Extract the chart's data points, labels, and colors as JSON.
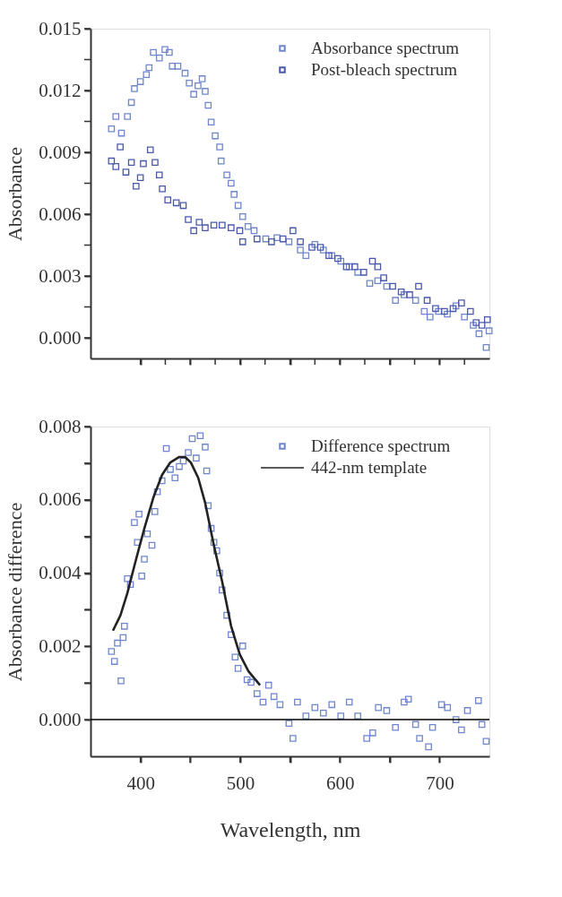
{
  "chart_data": [
    {
      "type": "scatter",
      "ylabel": "Absorbance",
      "marker": "square",
      "legend": "top right",
      "tick_labels": "y",
      "xlim": [
        350,
        750
      ],
      "xticks": [
        400,
        {
          "value": 425,
          "label": null
        },
        450,
        {
          "value": 475,
          "label": null
        },
        500,
        {
          "value": 525,
          "label": null
        },
        550,
        {
          "value": 575,
          "label": null
        },
        600,
        {
          "value": 625,
          "label": null
        },
        650,
        {
          "value": 675,
          "label": null
        },
        700,
        {
          "value": 725,
          "label": null
        }
      ],
      "ylim": [
        -0.001,
        0.015
      ],
      "yticks": [
        {
          "value": 0,
          "label": "0.000"
        },
        {
          "value": 0.0015,
          "label": null
        },
        {
          "value": 0.003,
          "label": "0.003"
        },
        {
          "value": 0.0045,
          "label": null
        },
        {
          "value": 0.006,
          "label": "0.006"
        },
        {
          "value": 0.0075,
          "label": null
        },
        {
          "value": 0.009,
          "label": "0.009"
        },
        {
          "value": 0.0105,
          "label": null
        },
        {
          "value": 0.012,
          "label": "0.012"
        },
        {
          "value": 0.0135,
          "label": null
        },
        {
          "value": 0.015,
          "label": "0.015"
        }
      ],
      "series": [
        {
          "name": "Absorbance spectrum",
          "color": "#6f86cc",
          "x": [
            371,
            375.4,
            381,
            387,
            391,
            394,
            400,
            406,
            408.7,
            413,
            419,
            424.6,
            429,
            432,
            437.6,
            444.8,
            449,
            453.5,
            457.8,
            462,
            465,
            468,
            471,
            475,
            479.5,
            481,
            486.7,
            491,
            494,
            498,
            502.6,
            508,
            514,
            525.7,
            537,
            549,
            560.4,
            566,
            575,
            583.5,
            592,
            601,
            609.5,
            618,
            630,
            638,
            647,
            655.8,
            664.5,
            676,
            684.7,
            690.5,
            699,
            707.8,
            716.5,
            725,
            733.8,
            739.6,
            746.8,
            749.7
          ],
          "values": [
            0.01014,
            0.01074,
            0.00993,
            0.01074,
            0.01142,
            0.01209,
            0.01243,
            0.01277,
            0.01311,
            0.01385,
            0.01358,
            0.01399,
            0.01385,
            0.01318,
            0.01318,
            0.01284,
            0.01236,
            0.01182,
            0.01223,
            0.01257,
            0.01196,
            0.01128,
            0.01047,
            0.0098,
            0.00926,
            0.00858,
            0.0079,
            0.0075,
            0.00696,
            0.00642,
            0.00588,
            0.0054,
            0.0052,
            0.0048,
            0.00486,
            0.00466,
            0.00426,
            0.00399,
            0.00453,
            0.00426,
            0.00399,
            0.00372,
            0.00345,
            0.00318,
            0.00264,
            0.00277,
            0.0025,
            0.00182,
            0.00209,
            0.00182,
            0.00128,
            0.00101,
            0.00128,
            0.00115,
            0.00155,
            0.00101,
            0.00061,
            0.0002,
            -0.00047,
            0.00034
          ]
        },
        {
          "name": "Post-bleach spectrum",
          "color": "#4a58ac",
          "x": [
            371,
            375.4,
            379.8,
            385.5,
            391,
            395.7,
            400,
            403,
            410,
            414.7,
            419,
            422,
            427.5,
            436,
            443,
            448,
            453.5,
            459,
            465,
            473.7,
            482,
            491,
            499.7,
            502.6,
            517,
            531.5,
            543,
            553,
            560.4,
            572,
            580.6,
            589,
            598,
            606.6,
            615,
            624,
            632.7,
            638,
            644,
            653,
            661.6,
            670,
            679,
            687.6,
            696,
            705,
            713.6,
            722,
            731,
            736.7,
            742.5,
            748
          ],
          "values": [
            0.00858,
            0.00831,
            0.00926,
            0.00804,
            0.00851,
            0.00736,
            0.00777,
            0.00845,
            0.00912,
            0.00851,
            0.0079,
            0.00723,
            0.00669,
            0.00655,
            0.00642,
            0.00574,
            0.0052,
            0.00561,
            0.00534,
            0.00547,
            0.00547,
            0.00534,
            0.0052,
            0.00466,
            0.0048,
            0.00466,
            0.0048,
            0.0052,
            0.00466,
            0.00439,
            0.00439,
            0.00399,
            0.00385,
            0.00345,
            0.00345,
            0.00318,
            0.00372,
            0.00345,
            0.00291,
            0.0025,
            0.00223,
            0.00209,
            0.0025,
            0.00182,
            0.00142,
            0.00128,
            0.00142,
            0.00169,
            0.00128,
            0.00074,
            0.00061,
            0.00088
          ]
        }
      ]
    },
    {
      "type": "scatter",
      "ylabel": "Absorbance  difference",
      "xlabel": "Wavelength,  nm",
      "legend": "top right",
      "xlim": [
        350,
        750
      ],
      "xticks": [
        400,
        {
          "value": 450,
          "label": null
        },
        500,
        {
          "value": 550,
          "label": null
        },
        600,
        {
          "value": 650,
          "label": null
        },
        700
      ],
      "ylim": [
        -0.001,
        0.008
      ],
      "yticks": [
        {
          "value": 0,
          "label": "0.000"
        },
        {
          "value": 0.001,
          "label": null
        },
        {
          "value": 0.002,
          "label": "0.002"
        },
        {
          "value": 0.003,
          "label": null
        },
        {
          "value": 0.004,
          "label": "0.004"
        },
        {
          "value": 0.005,
          "label": null
        },
        {
          "value": 0.006,
          "label": "0.006"
        },
        {
          "value": 0.007,
          "label": null
        },
        {
          "value": 0.008,
          "label": "0.008"
        }
      ],
      "ref_lines": [
        {
          "axis": "y",
          "value": 0,
          "color": "#000000"
        }
      ],
      "series": [
        {
          "name": "Difference spectrum",
          "marker": "square",
          "color": "#6f86cc",
          "x": [
            371,
            374,
            377,
            380.6,
            382.7,
            384,
            387,
            390,
            394,
            397,
            398.6,
            401.4,
            404,
            407,
            411.6,
            414.5,
            417,
            421.7,
            426,
            430,
            434.7,
            439,
            443,
            448,
            452,
            456,
            460,
            465,
            466.5,
            468,
            471,
            473.7,
            476.6,
            479.5,
            482,
            486.7,
            491,
            495,
            498,
            502.6,
            507,
            511,
            517,
            523,
            528.6,
            534,
            540,
            549,
            553,
            557.5,
            566,
            575,
            583.5,
            592,
            601,
            609.5,
            618,
            627,
            633,
            638.7,
            647,
            655.8,
            664.5,
            668.8,
            676,
            680,
            689,
            693,
            702,
            708,
            716.5,
            722,
            728,
            739,
            742.5,
            746.8
          ],
          "values": [
            0.00186,
            0.00159,
            0.00209,
            0.00106,
            0.00224,
            0.00255,
            0.00385,
            0.00369,
            0.00538,
            0.00484,
            0.00561,
            0.00392,
            0.00438,
            0.00507,
            0.00476,
            0.00568,
            0.00622,
            0.00652,
            0.0074,
            0.00683,
            0.0066,
            0.00691,
            0.00706,
            0.00729,
            0.00767,
            0.00714,
            0.00775,
            0.00744,
            0.00679,
            0.00584,
            0.00522,
            0.00484,
            0.00461,
            0.004,
            0.00354,
            0.00285,
            0.00232,
            0.00171,
            0.0014,
            0.00201,
            0.00109,
            0.00102,
            0.00071,
            0.00048,
            0.00094,
            0.00063,
            0.00041,
            -0.0001,
            -0.00051,
            0.00048,
            0.0001,
            0.00033,
            0.00018,
            0.00041,
            0.0001,
            0.00048,
            0.0001,
            -0.00051,
            -0.00036,
            0.00033,
            0.00025,
            -0.00021,
            0.00048,
            0.00056,
            -0.00013,
            -0.00051,
            -0.00074,
            -0.00021,
            0.00041,
            0.00033,
            0,
            -0.00028,
            0.00025,
            0.00052,
            -0.00013,
            -0.00059
          ]
        },
        {
          "name": "442-nm template",
          "type": "line",
          "color": "#222222",
          "x": [
            372.5,
            380,
            387,
            395.7,
            404,
            413,
            421.7,
            430,
            439,
            444.8,
            450.6,
            458,
            465,
            473.7,
            482,
            491,
            499.7,
            508.4,
            520
          ],
          "values": [
            0.00243,
            0.00285,
            0.00346,
            0.00438,
            0.00522,
            0.00606,
            0.00668,
            0.00702,
            0.00717,
            0.00717,
            0.00702,
            0.0066,
            0.00591,
            0.00476,
            0.00377,
            0.00255,
            0.00178,
            0.00132,
            0.00094
          ]
        }
      ]
    }
  ]
}
